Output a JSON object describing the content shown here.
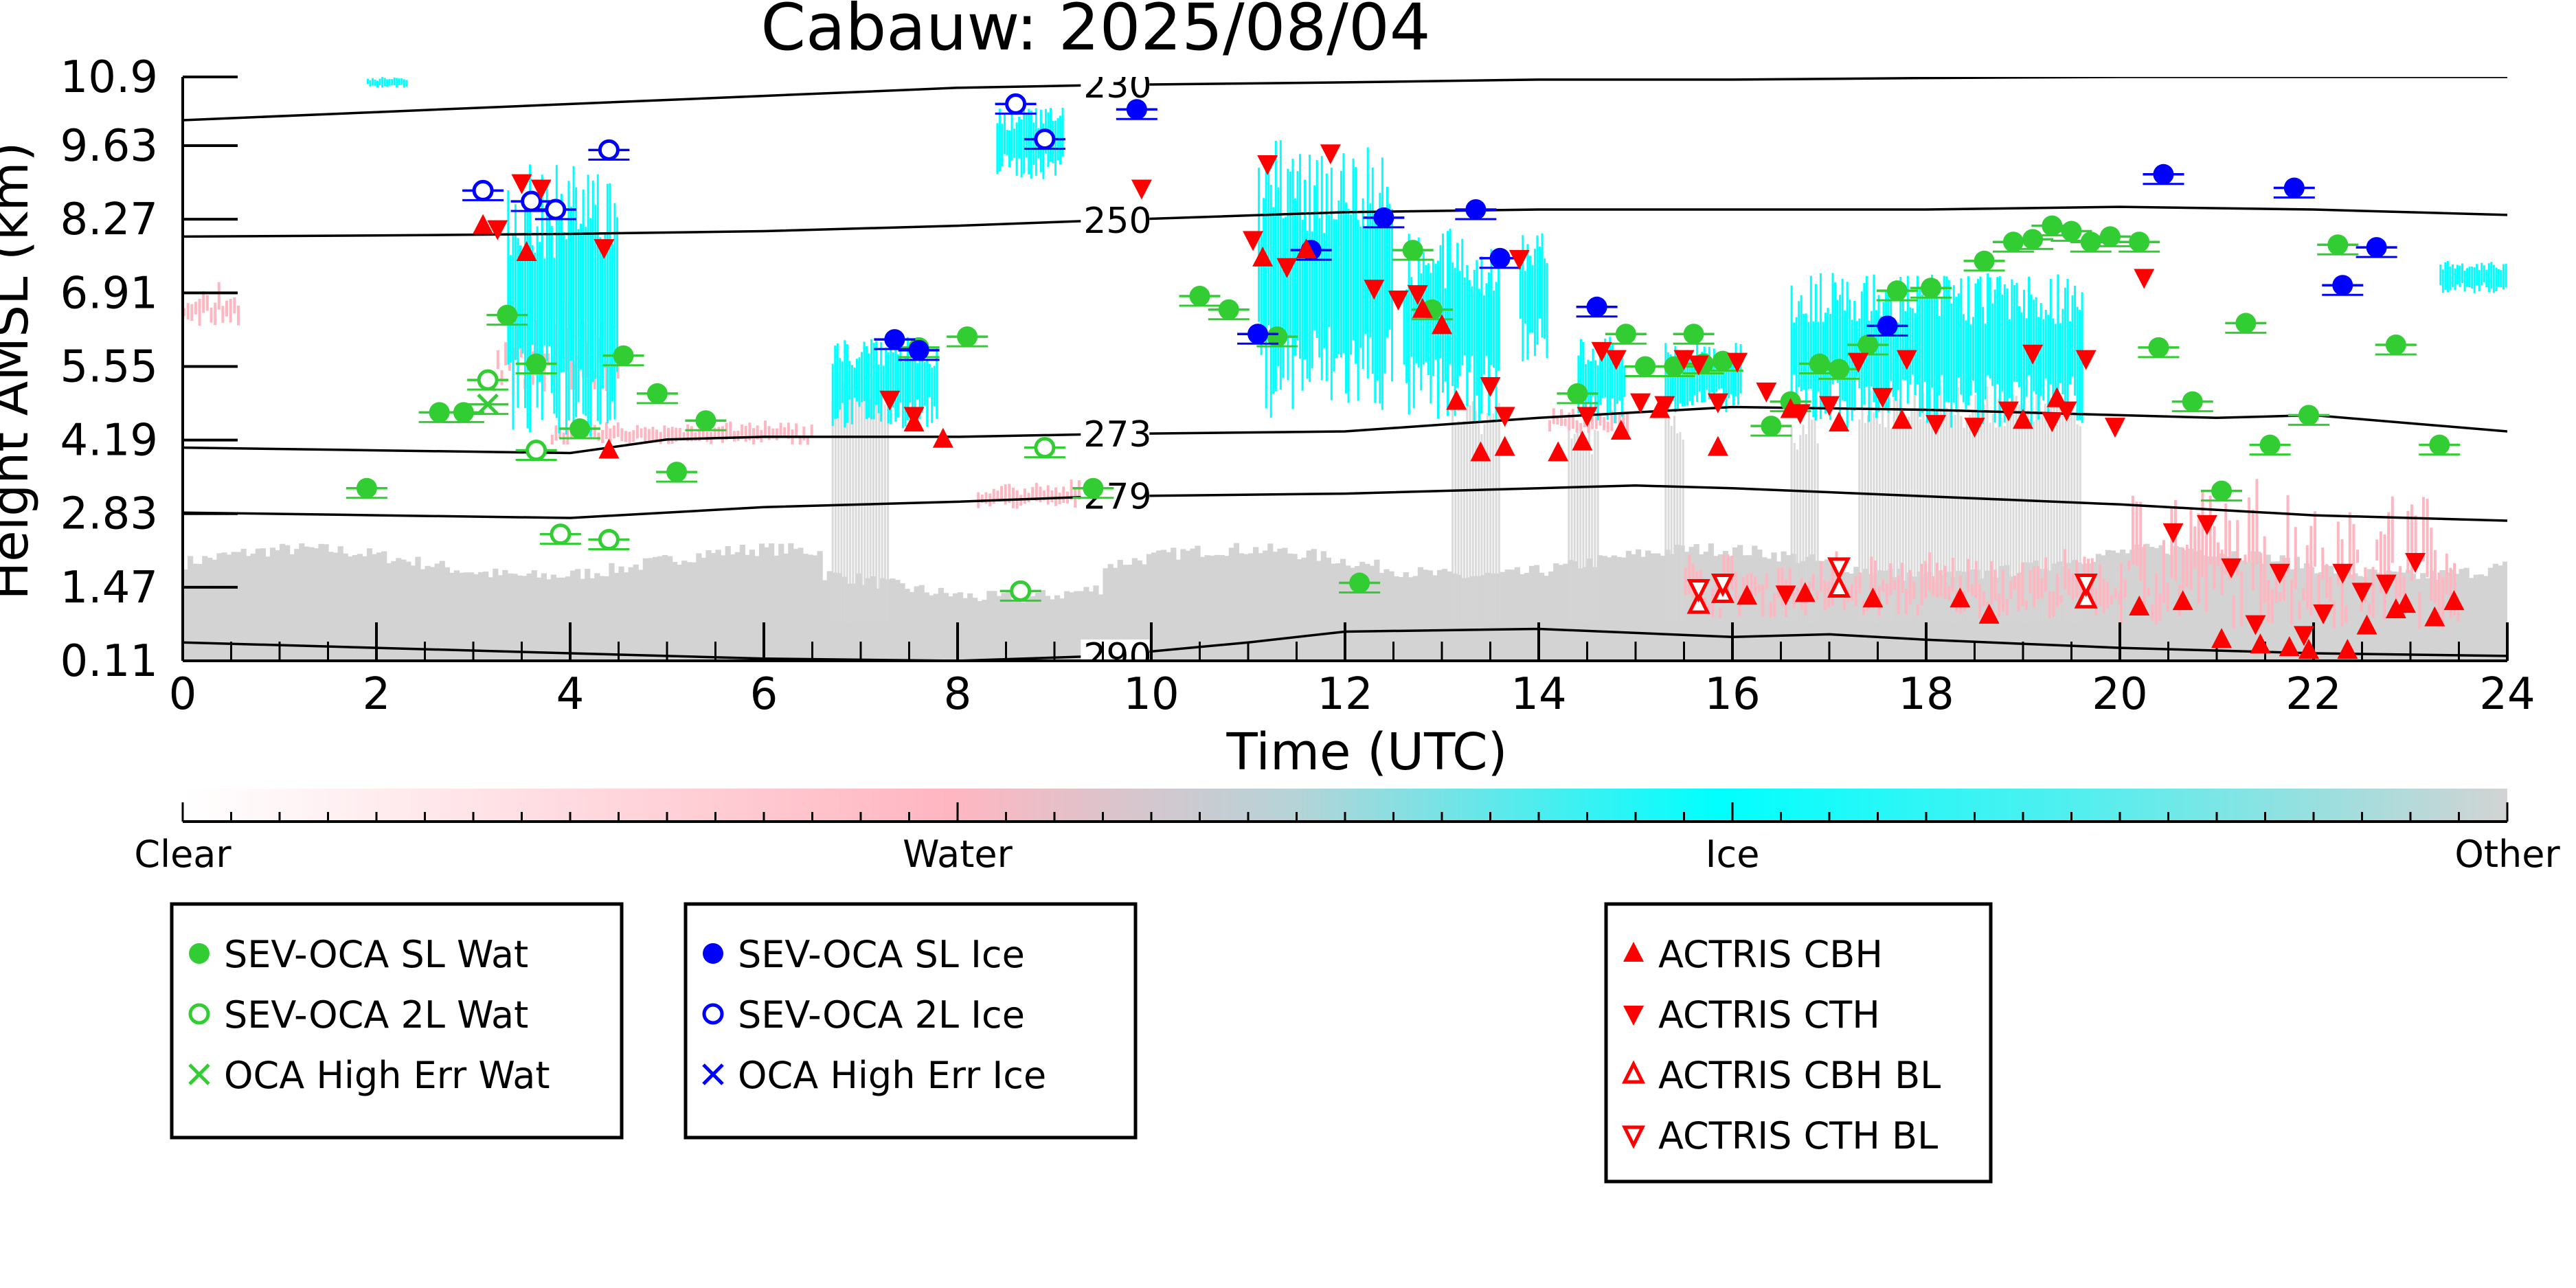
{
  "chart_data": {
    "type": "scatter",
    "title": "Cabauw: 2025/08/04",
    "xlabel": "Time (UTC)",
    "ylabel": "Height AMSL (km)",
    "xlim": [
      0,
      24
    ],
    "ylim": [
      0.11,
      10.9
    ],
    "xticks": [
      "0",
      "2",
      "4",
      "6",
      "8",
      "10",
      "12",
      "14",
      "16",
      "18",
      "20",
      "22",
      "24"
    ],
    "yticks": [
      "0.11",
      "1.47",
      "2.83",
      "4.19",
      "5.55",
      "6.91",
      "8.27",
      "9.63",
      "10.9"
    ],
    "grid": false,
    "legend_placement": "below",
    "colorbar": {
      "labels": [
        "Clear",
        "Water",
        "Ice",
        "Other"
      ],
      "colors": [
        "#ffffff",
        "#ffb6c1",
        "#00ffff",
        "#d3d3d3"
      ]
    },
    "contours": [
      {
        "label": "230",
        "x": [
          0,
          2,
          4,
          6,
          8,
          9.5,
          12,
          14,
          16,
          18,
          20,
          22,
          24
        ],
        "y": [
          10.1,
          10.25,
          10.4,
          10.55,
          10.7,
          10.75,
          10.8,
          10.85,
          10.85,
          10.88,
          10.9,
          10.9,
          10.9
        ]
      },
      {
        "label": "250",
        "x": [
          0,
          2,
          4,
          6,
          8,
          9.5,
          12,
          14,
          16,
          18,
          20,
          22,
          24
        ],
        "y": [
          7.95,
          7.97,
          8.0,
          8.05,
          8.15,
          8.25,
          8.4,
          8.45,
          8.45,
          8.45,
          8.5,
          8.45,
          8.35
        ]
      },
      {
        "label": "273",
        "x": [
          0,
          2,
          4,
          5,
          6,
          8,
          9.5,
          12,
          14,
          16,
          18,
          20,
          21,
          22,
          23,
          24
        ],
        "y": [
          4.05,
          4.0,
          3.95,
          4.2,
          4.25,
          4.25,
          4.3,
          4.35,
          4.6,
          4.8,
          4.75,
          4.65,
          4.6,
          4.65,
          4.5,
          4.35
        ]
      },
      {
        "label": "279",
        "x": [
          0,
          2,
          4,
          6,
          8,
          9.5,
          12,
          14,
          15,
          16,
          18,
          20,
          22,
          24
        ],
        "y": [
          2.85,
          2.8,
          2.75,
          2.95,
          3.05,
          3.15,
          3.2,
          3.3,
          3.35,
          3.3,
          3.15,
          3.0,
          2.8,
          2.7
        ]
      },
      {
        "label": "290",
        "x": [
          0,
          2,
          4,
          6,
          8,
          9.5,
          11,
          12,
          14,
          16,
          17,
          18,
          20,
          22,
          24
        ],
        "y": [
          0.45,
          0.35,
          0.25,
          0.15,
          0.11,
          0.2,
          0.45,
          0.65,
          0.7,
          0.55,
          0.6,
          0.5,
          0.35,
          0.25,
          0.2
        ]
      }
    ],
    "series": [
      {
        "name": "SEV-OCA SL Wat",
        "marker": "filled-circle",
        "color": "#32cd32",
        "x": [
          1.9,
          2.65,
          2.9,
          3.35,
          3.65,
          4.1,
          4.55,
          4.9,
          5.1,
          5.4,
          7.6,
          8.1,
          9.4,
          10.5,
          10.8,
          11.3,
          12.15,
          12.7,
          12.9,
          14.4,
          14.9,
          15.1,
          15.4,
          15.6,
          15.7,
          15.9,
          16.4,
          16.6,
          16.9,
          17.1,
          17.4,
          17.7,
          18.05,
          18.6,
          18.9,
          19.1,
          19.3,
          19.5,
          19.7,
          19.9,
          20.2,
          20.4,
          20.75,
          21.05,
          21.3,
          21.55,
          21.95,
          22.25,
          22.85,
          23.3
        ],
        "y": [
          3.3,
          4.7,
          4.7,
          6.5,
          5.6,
          4.4,
          5.75,
          5.05,
          3.6,
          4.55,
          5.9,
          6.1,
          3.3,
          6.85,
          6.6,
          6.1,
          1.55,
          7.7,
          6.6,
          5.05,
          6.15,
          5.55,
          5.55,
          6.15,
          5.6,
          5.65,
          4.45,
          4.9,
          5.6,
          5.5,
          5.95,
          6.95,
          7.0,
          7.5,
          7.85,
          7.9,
          8.15,
          8.05,
          7.85,
          7.95,
          7.85,
          5.9,
          4.9,
          3.25,
          6.35,
          4.1,
          4.65,
          7.8,
          5.95,
          4.1
        ]
      },
      {
        "name": "SEV-OCA 2L Wat",
        "marker": "open-circle",
        "color": "#32cd32",
        "x": [
          3.15,
          3.65,
          3.9,
          4.4,
          8.65,
          8.9
        ],
        "y": [
          5.3,
          4.0,
          2.45,
          2.35,
          1.4,
          4.05
        ]
      },
      {
        "name": "OCA High Err Wat",
        "marker": "x",
        "color": "#32cd32",
        "x": [
          3.15
        ],
        "y": [
          4.85
        ]
      },
      {
        "name": "SEV-OCA SL Ice",
        "marker": "filled-circle",
        "color": "#0000ff",
        "x": [
          7.35,
          7.6,
          9.85,
          11.1,
          11.65,
          12.4,
          13.35,
          13.6,
          14.6,
          17.6,
          20.45,
          21.8,
          22.3,
          22.65
        ],
        "y": [
          6.05,
          5.85,
          10.3,
          6.15,
          7.7,
          8.3,
          8.45,
          7.55,
          6.65,
          6.3,
          9.1,
          8.85,
          7.05,
          7.75
        ]
      },
      {
        "name": "SEV-OCA 2L Ice",
        "marker": "open-circle",
        "color": "#0000ff",
        "x": [
          3.1,
          3.6,
          3.85,
          4.4,
          8.6,
          8.9
        ],
        "y": [
          8.8,
          8.6,
          8.45,
          9.55,
          10.4,
          9.75
        ]
      },
      {
        "name": "OCA High Err Ice",
        "marker": "x",
        "color": "#0000ff",
        "x": [],
        "y": []
      },
      {
        "name": "ACTRIS CBH",
        "marker": "filled-triangle-up",
        "color": "#ff0000",
        "x": [
          3.1,
          3.55,
          4.4,
          7.55,
          7.85,
          11.15,
          11.6,
          12.8,
          13.0,
          13.15,
          13.4,
          13.65,
          14.2,
          14.45,
          14.85,
          15.25,
          15.85,
          16.15,
          16.6,
          16.75,
          17.1,
          17.45,
          17.75,
          18.35,
          18.65,
          19.0,
          19.35,
          20.2,
          20.65,
          21.05,
          21.45,
          21.75,
          21.95,
          22.35,
          22.55,
          22.85,
          22.95,
          23.25,
          23.45
        ],
        "y": [
          8.15,
          7.65,
          4.0,
          4.5,
          4.2,
          7.55,
          7.7,
          6.6,
          6.3,
          4.9,
          3.95,
          4.05,
          3.95,
          4.15,
          4.35,
          4.75,
          4.05,
          1.3,
          4.75,
          1.35,
          4.5,
          1.25,
          4.55,
          1.25,
          0.95,
          4.55,
          4.95,
          1.1,
          1.2,
          0.5,
          0.4,
          0.35,
          0.3,
          0.3,
          0.75,
          1.05,
          1.15,
          0.9,
          1.2
        ]
      },
      {
        "name": "ACTRIS CTH",
        "marker": "filled-triangle-down",
        "color": "#ff0000",
        "x": [
          3.25,
          3.5,
          3.7,
          4.35,
          7.3,
          7.55,
          9.9,
          11.05,
          11.2,
          11.4,
          11.85,
          12.3,
          12.55,
          12.75,
          13.5,
          13.65,
          13.8,
          14.5,
          14.65,
          14.8,
          15.05,
          15.3,
          15.5,
          15.65,
          15.85,
          16.05,
          16.35,
          16.55,
          16.7,
          17.0,
          17.3,
          17.55,
          17.8,
          18.1,
          18.5,
          18.85,
          19.1,
          19.3,
          19.45,
          19.65,
          19.95,
          20.25,
          20.55,
          20.9,
          21.15,
          21.4,
          21.65,
          21.9,
          22.1,
          22.3,
          22.5,
          22.75,
          23.05
        ],
        "y": [
          8.1,
          8.95,
          8.85,
          7.75,
          4.95,
          4.65,
          8.85,
          7.9,
          9.3,
          7.4,
          9.5,
          7.0,
          6.8,
          6.9,
          5.2,
          4.65,
          7.55,
          4.65,
          5.85,
          5.7,
          4.9,
          4.85,
          5.7,
          5.6,
          4.9,
          5.65,
          5.1,
          1.35,
          4.7,
          4.85,
          5.65,
          5.0,
          5.7,
          4.5,
          4.45,
          4.75,
          5.8,
          4.55,
          4.75,
          5.7,
          4.45,
          7.2,
          2.5,
          2.65,
          1.85,
          0.8,
          1.75,
          0.6,
          1.0,
          1.75,
          1.4,
          1.55,
          1.95
        ]
      },
      {
        "name": "ACTRIS CBH BL",
        "marker": "open-triangle-up",
        "color": "#ff0000",
        "x": [
          15.65,
          15.9,
          17.1,
          19.65
        ],
        "y": [
          1.15,
          1.35,
          1.45,
          1.25
        ]
      },
      {
        "name": "ACTRIS CTH BL",
        "marker": "open-triangle-down",
        "color": "#ff0000",
        "x": [
          15.65,
          15.9,
          17.1,
          19.65
        ],
        "y": [
          1.45,
          1.55,
          1.85,
          1.55
        ]
      }
    ]
  },
  "legend_groups": [
    [
      "SEV-OCA SL Wat",
      "SEV-OCA 2L Wat",
      "OCA High Err Wat"
    ],
    [
      "SEV-OCA SL Ice",
      "SEV-OCA 2L Ice",
      "OCA High Err Ice"
    ],
    [
      "ACTRIS CBH",
      "ACTRIS CTH",
      "ACTRIS CBH BL",
      "ACTRIS CTH BL"
    ]
  ]
}
